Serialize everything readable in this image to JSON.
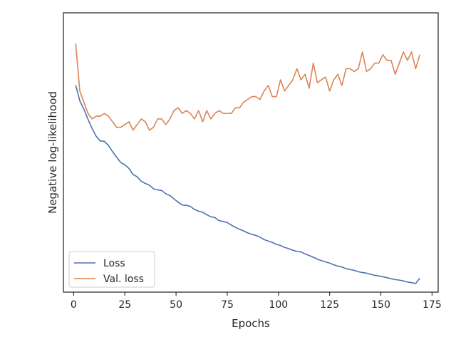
{
  "chart_data": {
    "type": "line",
    "title": "",
    "xlabel": "Epochs",
    "ylabel": "Negative log-likelihood",
    "xlim": [
      -5,
      178
    ],
    "ylim": [
      0,
      1
    ],
    "x_ticks": [
      0,
      25,
      50,
      75,
      100,
      125,
      150,
      175
    ],
    "y_ticks_visible": false,
    "legend_position": "lower-left",
    "series": [
      {
        "name": "Loss",
        "color": "#4c72b0",
        "x": [
          1,
          3,
          5,
          7,
          9,
          11,
          13,
          15,
          17,
          19,
          21,
          23,
          25,
          27,
          29,
          31,
          33,
          35,
          37,
          39,
          41,
          43,
          45,
          47,
          49,
          51,
          53,
          55,
          57,
          59,
          61,
          63,
          65,
          67,
          69,
          71,
          73,
          75,
          77,
          79,
          81,
          83,
          85,
          87,
          89,
          91,
          93,
          95,
          97,
          99,
          101,
          103,
          105,
          107,
          109,
          111,
          113,
          115,
          117,
          119,
          121,
          123,
          125,
          127,
          129,
          131,
          133,
          135,
          137,
          139,
          141,
          143,
          145,
          147,
          149,
          151,
          153,
          155,
          157,
          159,
          161,
          163,
          165,
          167,
          169
        ],
        "values": [
          0.741,
          0.685,
          0.655,
          0.619,
          0.586,
          0.558,
          0.541,
          0.54,
          0.525,
          0.503,
          0.483,
          0.464,
          0.456,
          0.443,
          0.421,
          0.413,
          0.397,
          0.389,
          0.383,
          0.37,
          0.366,
          0.364,
          0.352,
          0.346,
          0.334,
          0.322,
          0.312,
          0.311,
          0.307,
          0.296,
          0.29,
          0.286,
          0.277,
          0.27,
          0.267,
          0.256,
          0.253,
          0.249,
          0.24,
          0.232,
          0.225,
          0.219,
          0.212,
          0.207,
          0.203,
          0.197,
          0.188,
          0.183,
          0.178,
          0.171,
          0.167,
          0.16,
          0.156,
          0.15,
          0.146,
          0.144,
          0.137,
          0.131,
          0.125,
          0.118,
          0.113,
          0.108,
          0.104,
          0.098,
          0.093,
          0.09,
          0.084,
          0.081,
          0.078,
          0.073,
          0.07,
          0.068,
          0.064,
          0.06,
          0.058,
          0.055,
          0.052,
          0.048,
          0.045,
          0.043,
          0.04,
          0.036,
          0.034,
          0.031,
          0.05
        ]
      },
      {
        "name": "Val. loss",
        "color": "#dd8452",
        "x": [
          1,
          3,
          5,
          7,
          9,
          11,
          13,
          15,
          17,
          19,
          21,
          23,
          25,
          27,
          29,
          31,
          33,
          35,
          37,
          39,
          41,
          43,
          45,
          47,
          49,
          51,
          53,
          55,
          57,
          59,
          61,
          63,
          65,
          67,
          69,
          71,
          73,
          75,
          77,
          79,
          81,
          83,
          85,
          87,
          89,
          91,
          93,
          95,
          97,
          99,
          101,
          103,
          105,
          107,
          109,
          111,
          113,
          115,
          117,
          119,
          121,
          123,
          125,
          127,
          129,
          131,
          133,
          135,
          137,
          139,
          141,
          143,
          145,
          147,
          149,
          151,
          153,
          155,
          157,
          159,
          161,
          163,
          165,
          167,
          169
        ],
        "values": [
          0.89,
          0.72,
          0.68,
          0.64,
          0.62,
          0.63,
          0.63,
          0.64,
          0.63,
          0.61,
          0.59,
          0.59,
          0.6,
          0.61,
          0.58,
          0.6,
          0.62,
          0.61,
          0.58,
          0.59,
          0.62,
          0.62,
          0.6,
          0.62,
          0.65,
          0.66,
          0.64,
          0.65,
          0.64,
          0.62,
          0.65,
          0.61,
          0.65,
          0.62,
          0.64,
          0.65,
          0.64,
          0.64,
          0.64,
          0.66,
          0.66,
          0.68,
          0.69,
          0.7,
          0.7,
          0.69,
          0.72,
          0.74,
          0.7,
          0.7,
          0.76,
          0.72,
          0.74,
          0.76,
          0.8,
          0.76,
          0.78,
          0.73,
          0.82,
          0.75,
          0.76,
          0.77,
          0.72,
          0.76,
          0.78,
          0.74,
          0.8,
          0.8,
          0.79,
          0.8,
          0.86,
          0.79,
          0.8,
          0.82,
          0.82,
          0.85,
          0.83,
          0.83,
          0.78,
          0.82,
          0.86,
          0.83,
          0.86,
          0.8,
          0.85
        ]
      }
    ]
  }
}
